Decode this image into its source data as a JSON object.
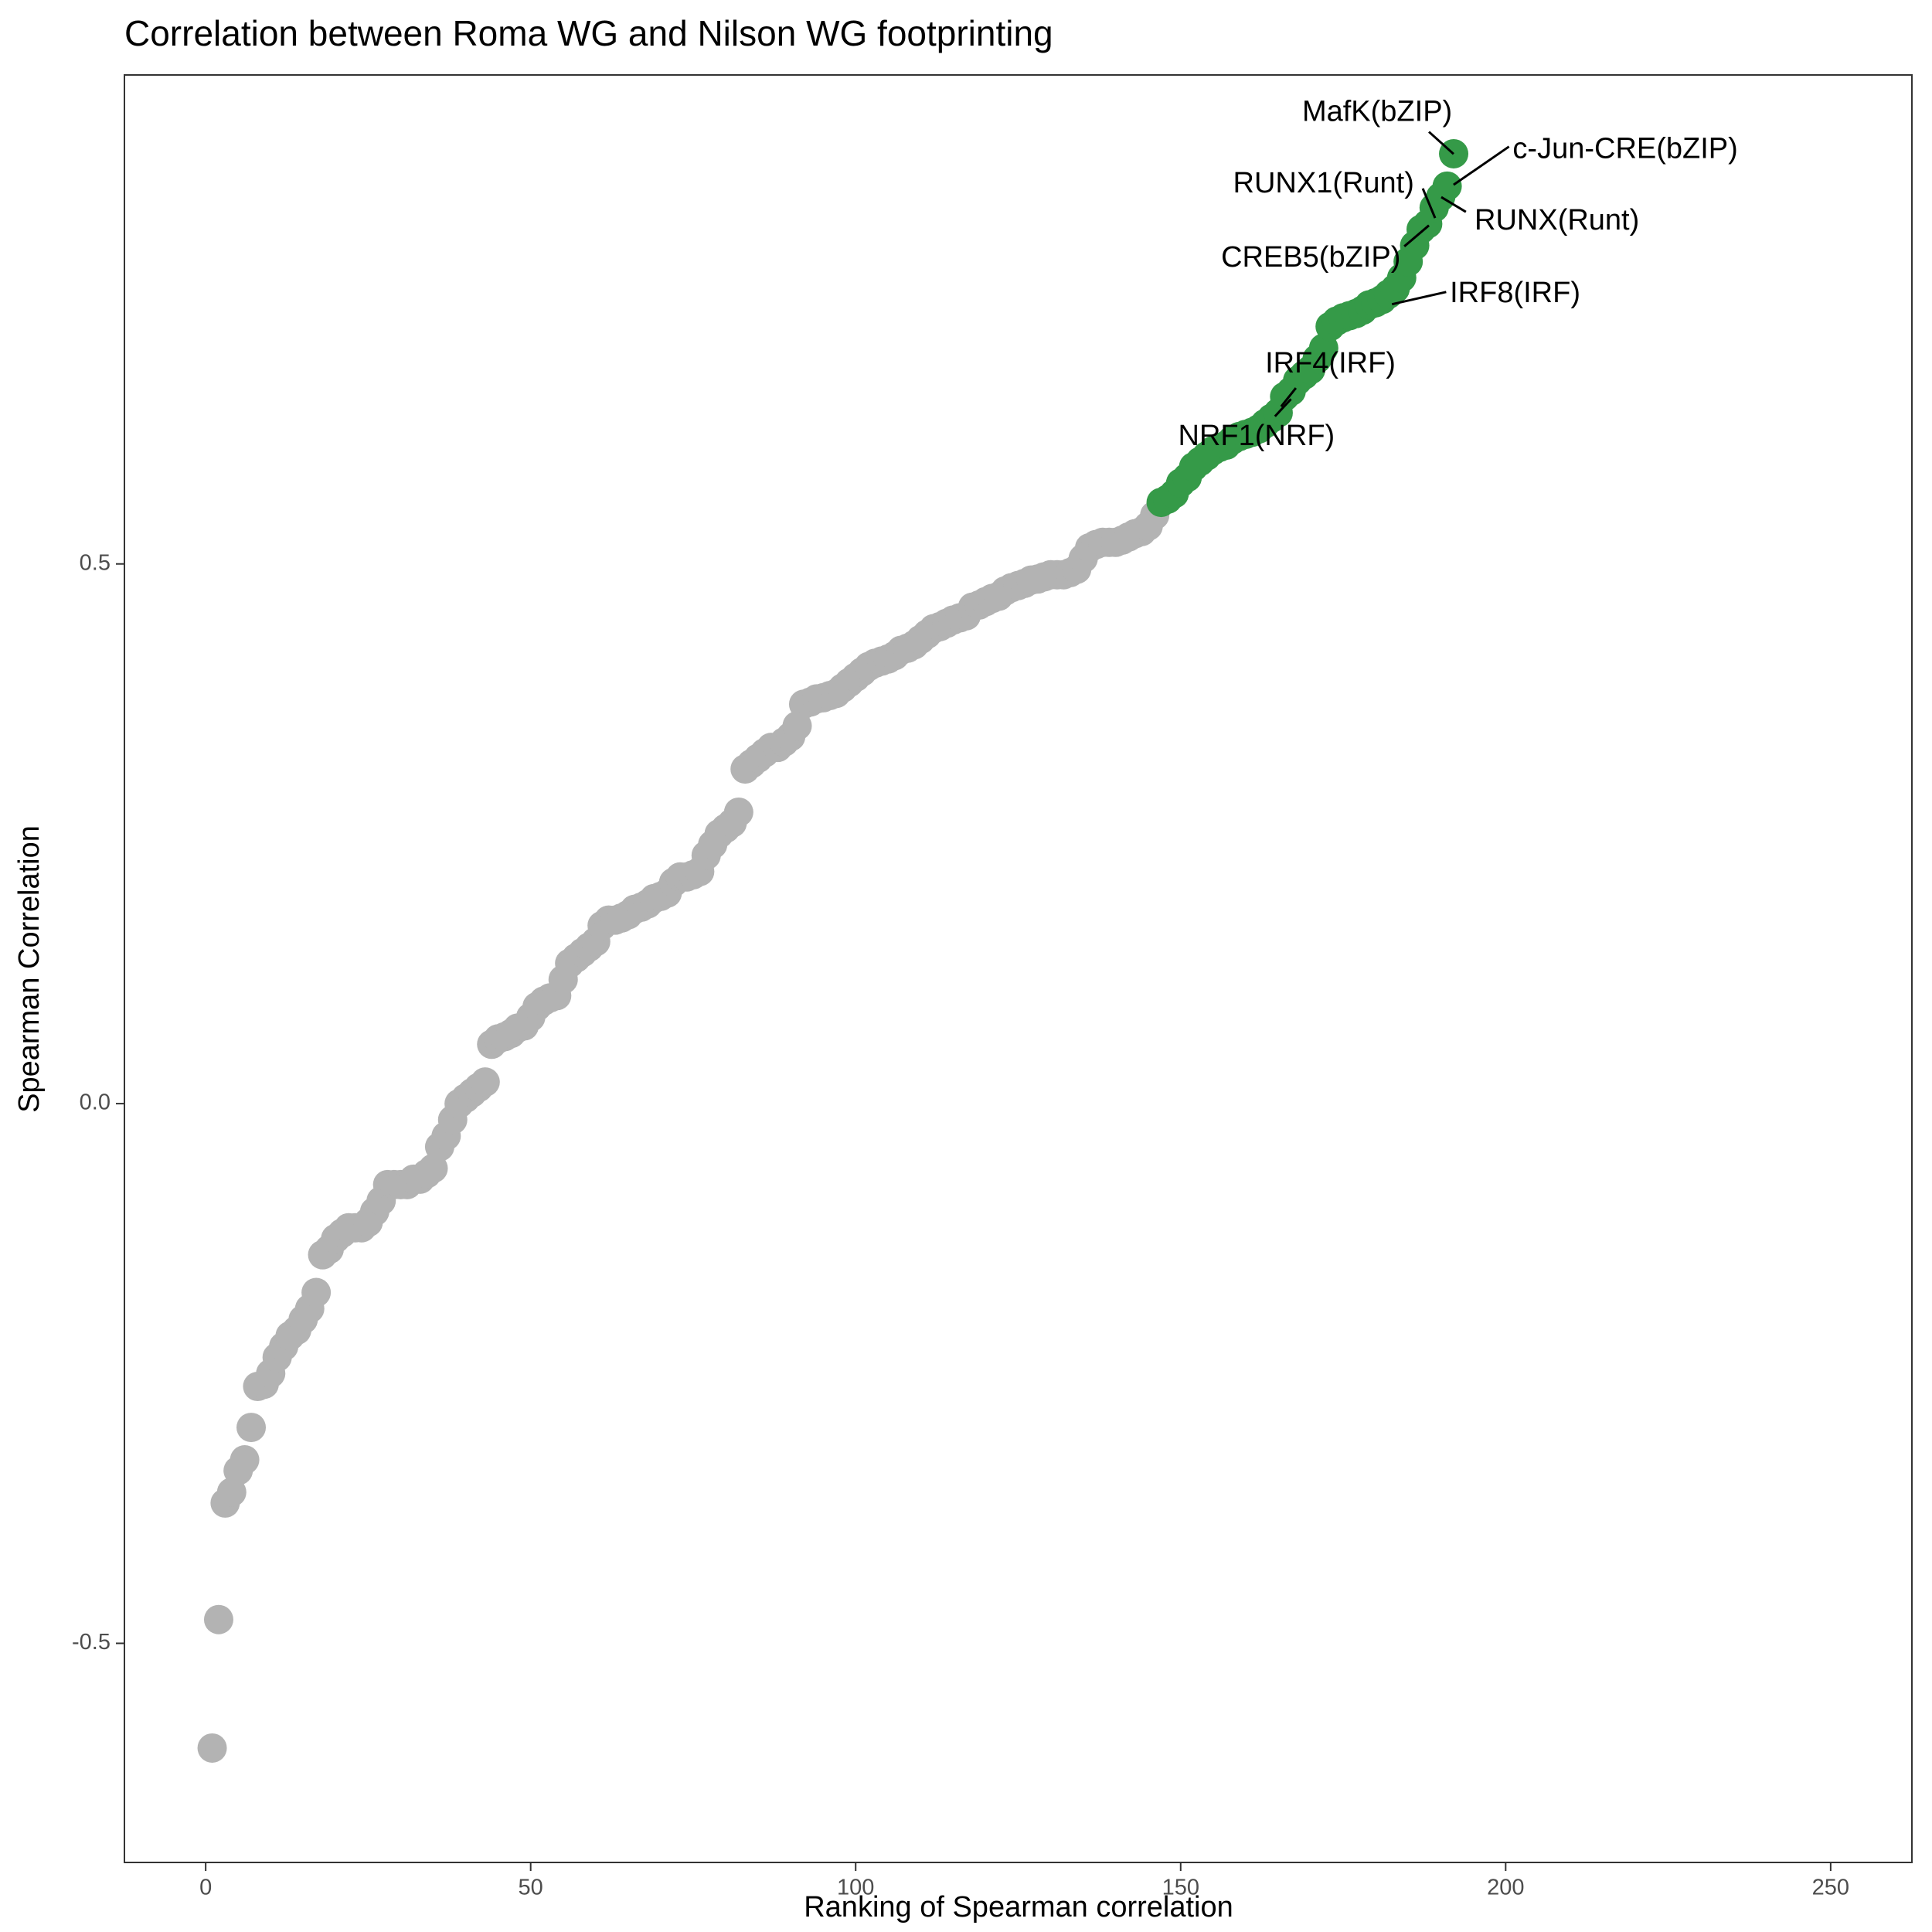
{
  "chart_data": {
    "type": "scatter",
    "title": "Correlation between Roma WG and Nilson WG footprinting",
    "x_label": "Ranking of Spearman correlation",
    "y_label": "Spearman Correlation",
    "xlim": [
      -12.5,
      262.5
    ],
    "ylim": [
      -0.703,
      0.953
    ],
    "xticks": [
      0,
      50,
      100,
      150,
      200,
      250
    ],
    "yticks": [
      -0.5,
      {
        "value": 0,
        "label": "0.0"
      },
      0.5
    ],
    "grid": false,
    "series": [
      {
        "color": "#b3b3b3",
        "x": [
          1,
          2,
          3,
          4,
          5,
          6,
          7,
          8,
          9,
          10,
          11,
          12,
          13,
          14,
          15,
          16,
          17,
          18,
          19,
          20,
          21,
          22,
          23,
          24,
          25,
          26,
          27,
          28,
          29,
          30,
          31,
          32,
          33,
          34,
          35,
          36,
          37,
          38,
          39,
          40,
          41,
          42,
          43,
          44,
          45,
          46,
          47,
          48,
          49,
          50,
          51,
          52,
          53,
          54,
          55,
          56,
          57,
          58,
          59,
          60,
          61,
          62,
          63,
          64,
          65,
          66,
          67,
          68,
          69,
          70,
          71,
          72,
          73,
          74,
          75,
          76,
          77,
          78,
          79,
          80,
          81,
          82,
          83,
          84,
          85,
          86,
          87,
          88,
          89,
          90,
          91,
          92,
          93,
          94,
          95,
          96,
          97,
          98,
          99,
          100,
          101,
          102,
          103,
          104,
          105,
          106,
          107,
          108,
          109,
          110,
          111,
          112,
          113,
          114,
          115,
          116,
          117,
          118,
          119,
          120,
          121,
          122,
          123,
          124,
          125,
          126,
          127,
          128,
          129,
          130,
          131,
          132,
          133,
          134,
          135,
          136,
          137,
          138,
          139,
          140,
          141,
          142,
          143,
          144,
          145,
          146
        ],
        "values": [
          -0.597,
          -0.478,
          -0.37,
          -0.36,
          -0.34,
          -0.33,
          -0.3,
          -0.262,
          -0.26,
          -0.25,
          -0.235,
          -0.225,
          -0.215,
          -0.21,
          -0.2,
          -0.19,
          -0.175,
          -0.14,
          -0.135,
          -0.125,
          -0.12,
          -0.115,
          -0.115,
          -0.115,
          -0.11,
          -0.1,
          -0.09,
          -0.075,
          -0.075,
          -0.075,
          -0.075,
          -0.07,
          -0.07,
          -0.065,
          -0.06,
          -0.04,
          -0.03,
          -0.015,
          0.0,
          0.005,
          0.01,
          0.015,
          0.02,
          0.055,
          0.06,
          0.062,
          0.065,
          0.07,
          0.072,
          0.08,
          0.09,
          0.095,
          0.098,
          0.1,
          0.115,
          0.13,
          0.135,
          0.14,
          0.145,
          0.15,
          0.165,
          0.17,
          0.17,
          0.172,
          0.175,
          0.18,
          0.182,
          0.185,
          0.19,
          0.192,
          0.195,
          0.205,
          0.21,
          0.21,
          0.212,
          0.215,
          0.23,
          0.24,
          0.25,
          0.255,
          0.26,
          0.27,
          0.31,
          0.315,
          0.32,
          0.325,
          0.33,
          0.33,
          0.335,
          0.34,
          0.35,
          0.37,
          0.372,
          0.375,
          0.376,
          0.378,
          0.38,
          0.385,
          0.39,
          0.395,
          0.4,
          0.405,
          0.408,
          0.41,
          0.412,
          0.415,
          0.42,
          0.422,
          0.425,
          0.43,
          0.435,
          0.44,
          0.442,
          0.445,
          0.448,
          0.45,
          0.452,
          0.46,
          0.462,
          0.465,
          0.468,
          0.47,
          0.475,
          0.478,
          0.48,
          0.482,
          0.485,
          0.486,
          0.488,
          0.49,
          0.49,
          0.49,
          0.492,
          0.495,
          0.505,
          0.515,
          0.518,
          0.52,
          0.52,
          0.52,
          0.522,
          0.525,
          0.528,
          0.53,
          0.535,
          0.545
        ]
      },
      {
        "color": "#359a48",
        "x": [
          147,
          148,
          149,
          150,
          151,
          152,
          153,
          154,
          155,
          156,
          157,
          158,
          159,
          160,
          161,
          162,
          163,
          164,
          165,
          166,
          167,
          168,
          169,
          170,
          171,
          172,
          173,
          174,
          175,
          176,
          177,
          178,
          179,
          180,
          181,
          182,
          183,
          184,
          185,
          186,
          187,
          188,
          189,
          190,
          191,
          192
        ],
        "values": [
          0.557,
          0.56,
          0.565,
          0.575,
          0.58,
          0.59,
          0.595,
          0.6,
          0.605,
          0.608,
          0.61,
          0.615,
          0.618,
          0.62,
          0.622,
          0.625,
          0.63,
          0.635,
          0.64,
          0.655,
          0.66,
          0.67,
          0.675,
          0.68,
          0.69,
          0.7,
          0.72,
          0.725,
          0.728,
          0.73,
          0.732,
          0.735,
          0.74,
          0.742,
          0.745,
          0.75,
          0.755,
          0.765,
          0.78,
          0.795,
          0.81,
          0.815,
          0.83,
          0.84,
          0.85,
          0.88
        ]
      }
    ],
    "annotations": [
      {
        "text": "MafK(bZIP)"
      },
      {
        "text": "c-Jun-CRE(bZIP)"
      },
      {
        "text": "RUNX1(Runt)"
      },
      {
        "text": "RUNX(Runt)"
      },
      {
        "text": "CREB5(bZIP)"
      },
      {
        "text": "IRF8(IRF)"
      },
      {
        "text": "IRF4(IRF)"
      },
      {
        "text": "NRF1(NRF)"
      }
    ]
  }
}
